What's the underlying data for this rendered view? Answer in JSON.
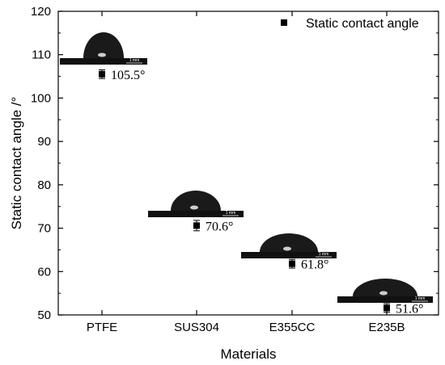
{
  "chart_data": {
    "type": "scatter",
    "title": "",
    "xlabel": "Materials",
    "ylabel": "Static contact angle /°",
    "categories": [
      "PTFE",
      "SUS304",
      "E355CC",
      "E235B"
    ],
    "ylim": [
      50,
      120
    ],
    "yticks": [
      50,
      60,
      70,
      80,
      90,
      100,
      110,
      120
    ],
    "grid": false,
    "legend_position": "top-right",
    "series": [
      {
        "name": "Static contact angle",
        "marker": "square",
        "values": [
          105.5,
          70.6,
          61.8,
          51.6
        ],
        "error": [
          1.0,
          1.2,
          1.0,
          1.0
        ]
      }
    ],
    "annotations": [
      "105.5°",
      "70.6°",
      "61.8°",
      "51.6°"
    ],
    "inset_images": {
      "description_icon": "droplet-on-surface-photo",
      "scale_bar_label": "1 mm"
    }
  }
}
